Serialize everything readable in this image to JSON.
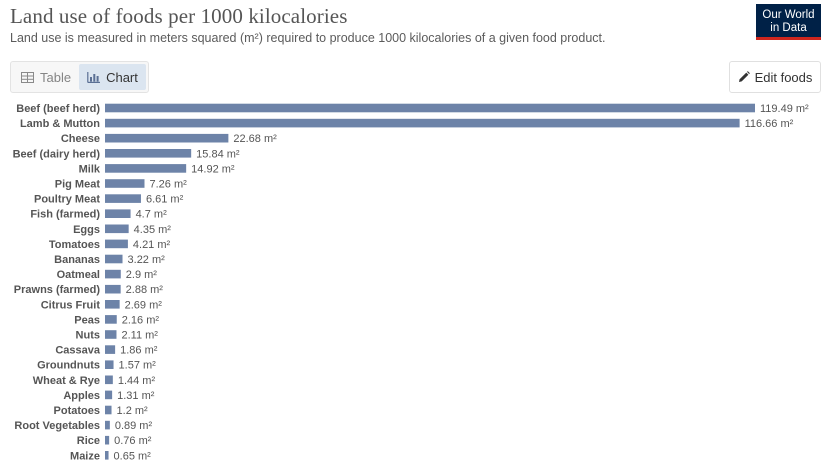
{
  "header": {
    "title": "Land use of foods per 1000 kilocalories",
    "subtitle": "Land use is measured in meters squared (m²) required to produce 1000 kilocalories of a given food product."
  },
  "logo": {
    "line1": "Our World",
    "line2": "in Data",
    "bg_color": "#002147",
    "accent_color": "#ce261e"
  },
  "tabs": [
    {
      "label": "Table",
      "icon": "table-icon",
      "active": false
    },
    {
      "label": "Chart",
      "icon": "bar-chart-icon",
      "active": true
    }
  ],
  "toolbar": {
    "edit_label": "Edit foods",
    "edit_icon": "pencil-icon"
  },
  "chart_data": {
    "type": "bar",
    "orientation": "horizontal",
    "unit": "m²",
    "bar_color": "#6d83a8",
    "categories": [
      "Beef (beef herd)",
      "Lamb & Mutton",
      "Cheese",
      "Beef (dairy herd)",
      "Milk",
      "Pig Meat",
      "Poultry Meat",
      "Fish (farmed)",
      "Eggs",
      "Tomatoes",
      "Bananas",
      "Oatmeal",
      "Prawns (farmed)",
      "Citrus Fruit",
      "Peas",
      "Nuts",
      "Cassava",
      "Groundnuts",
      "Wheat & Rye",
      "Apples",
      "Potatoes",
      "Root Vegetables",
      "Rice",
      "Maize"
    ],
    "values": [
      119.49,
      116.66,
      22.68,
      15.84,
      14.92,
      7.26,
      6.61,
      4.7,
      4.35,
      4.21,
      3.22,
      2.9,
      2.88,
      2.69,
      2.16,
      2.11,
      1.86,
      1.57,
      1.44,
      1.31,
      1.2,
      0.89,
      0.76,
      0.65
    ],
    "xlim": [
      0,
      119.49
    ]
  }
}
